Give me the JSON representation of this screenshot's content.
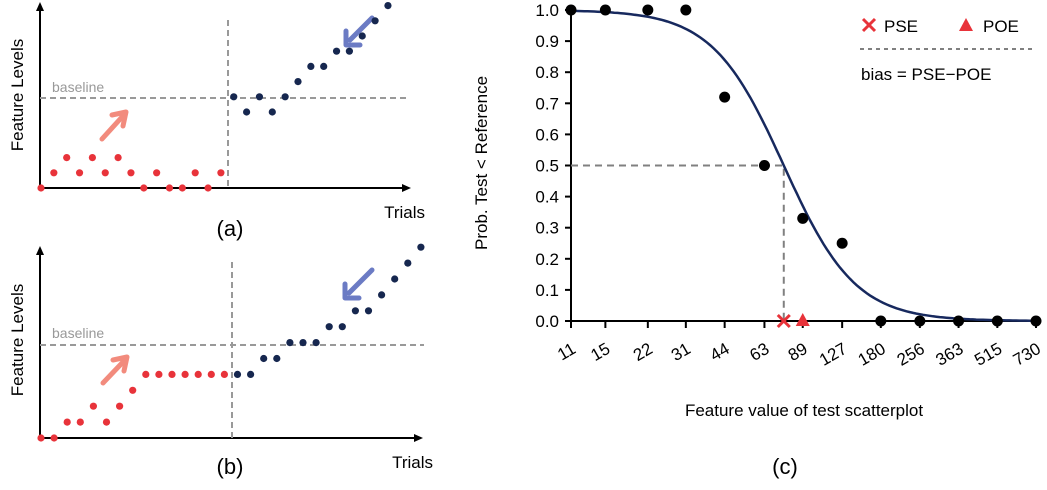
{
  "chart_data": [
    {
      "type": "scatter",
      "panel_label": "(a)",
      "xlabel": "Trials",
      "ylabel": "Feature Levels",
      "baseline_label": "baseline",
      "trials_below_baseline": [
        0,
        1,
        2,
        3,
        4,
        5,
        6,
        7,
        8,
        9,
        10,
        11,
        12,
        13,
        14
      ],
      "levels_below_baseline": [
        0,
        1,
        2,
        1,
        2,
        1,
        2,
        1,
        0,
        1,
        0,
        0,
        1,
        0,
        1
      ],
      "trials_above_baseline": [
        15,
        16,
        17,
        18,
        19,
        20,
        21,
        22,
        23,
        24,
        25,
        26,
        27
      ],
      "levels_above_baseline": [
        6,
        5,
        6,
        5,
        6,
        7,
        8,
        8,
        9,
        9,
        10,
        11,
        12
      ]
    },
    {
      "type": "scatter",
      "panel_label": "(b)",
      "xlabel": "Trials",
      "ylabel": "Feature Levels",
      "baseline_label": "baseline",
      "trials_below_baseline": [
        0,
        1,
        2,
        3,
        4,
        5,
        6,
        7,
        8,
        9,
        10,
        11,
        12,
        13,
        14
      ],
      "levels_below_baseline": [
        0,
        0,
        1,
        1,
        2,
        1,
        2,
        3,
        4,
        4,
        4,
        4,
        4,
        4,
        4
      ],
      "trials_above_baseline": [
        15,
        16,
        17,
        18,
        19,
        20,
        21,
        22,
        23,
        24,
        25,
        26,
        27,
        28,
        29
      ],
      "levels_above_baseline": [
        4,
        4,
        5,
        5,
        6,
        6,
        6,
        7,
        7,
        8,
        8,
        9,
        10,
        11,
        12
      ]
    },
    {
      "type": "line",
      "panel_label": "(c)",
      "xlabel": "Feature value of test scatterplot",
      "ylabel": "Prob. Test < Reference",
      "x_tick_labels": [
        "11",
        "15",
        "22",
        "31",
        "44",
        "63",
        "89",
        "127",
        "180",
        "256",
        "363",
        "515",
        "730"
      ],
      "y_tick_labels": [
        "0.0",
        "0.1",
        "0.2",
        "0.3",
        "0.4",
        "0.5",
        "0.6",
        "0.7",
        "0.8",
        "0.9",
        "1.0"
      ],
      "ylim": [
        0,
        1
      ],
      "x_scale": "log",
      "observed_points": {
        "x": [
          11,
          15,
          22,
          31,
          44,
          63,
          89,
          127,
          180,
          256,
          363,
          515,
          730
        ],
        "y": [
          1.0,
          1.0,
          1.0,
          1.0,
          0.72,
          0.5,
          0.33,
          0.25,
          0.0,
          0.0,
          0.0,
          0.0,
          0.0
        ]
      },
      "pse": 75,
      "poe": 89,
      "legend": {
        "pse_label": "PSE",
        "poe_label": "POE",
        "bias_label": "bias = PSE−POE",
        "placement": "top-right"
      }
    }
  ],
  "colors": {
    "descending": "#e8333a",
    "ascending": "#16274f",
    "arrow_down_series": "#f28b7d",
    "arrow_up_series": "#6b7bc4",
    "curve": "#17295e",
    "marker": "#000000",
    "pse": "#e8333a",
    "poe": "#e8333a",
    "baseline": "#999999",
    "grid_guides": "#808080"
  }
}
